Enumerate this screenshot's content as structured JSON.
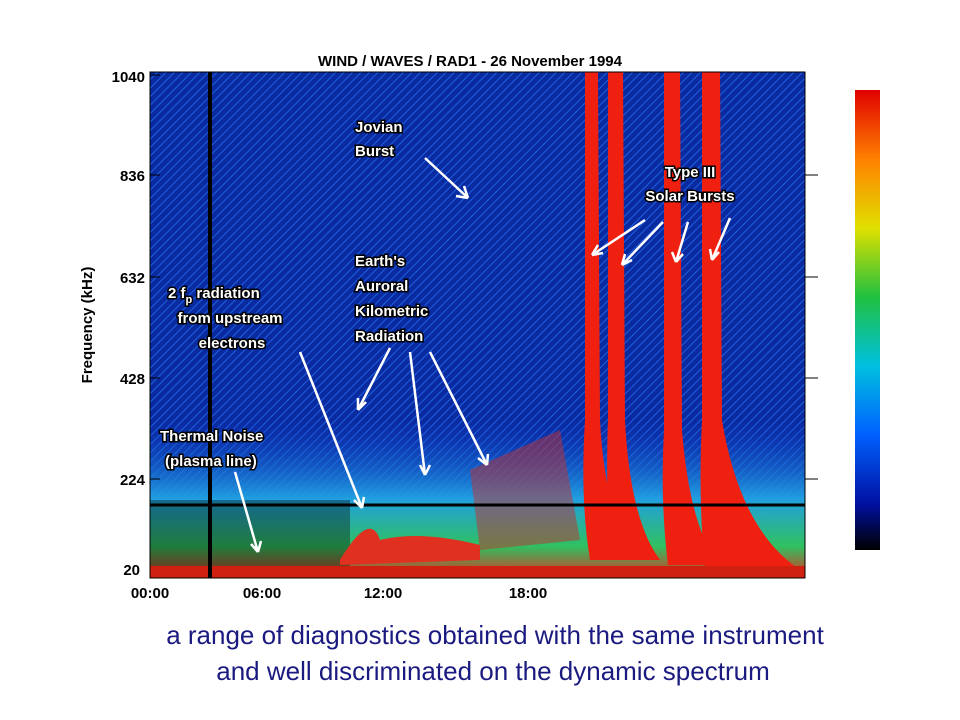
{
  "figure": {
    "title": "WIND / WAVES / RAD1   -   26 November 1994",
    "y_axis_label": "Frequency  (kHz)",
    "y_ticks": [
      "1040",
      "836",
      "632",
      "428",
      "224",
      "20"
    ],
    "x_ticks": [
      "00:00",
      "06:00",
      "12:00",
      "18:00"
    ],
    "annotations": {
      "jovian": [
        "Jovian",
        "Burst"
      ],
      "type3": [
        "Type III",
        "Solar Bursts"
      ],
      "akr": [
        "Earth's",
        "Auroral",
        "Kilometric",
        "Radiation"
      ],
      "fp": [
        "2  f",
        "p",
        " radiation",
        "from upstream",
        "electrons"
      ],
      "thermal": [
        "Thermal Noise",
        "(plasma line)"
      ]
    }
  },
  "caption": [
    "a range of diagnostics obtained with the same instrument",
    "and well discriminated on the dynamic spectrum"
  ]
}
